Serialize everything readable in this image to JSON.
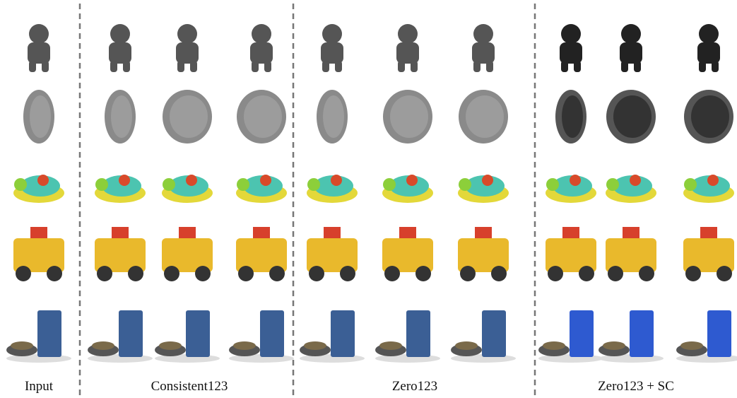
{
  "figure": {
    "columns": [
      "Input",
      "Consistent123",
      "Zero123",
      "Zero123 + SC"
    ]
  }
}
